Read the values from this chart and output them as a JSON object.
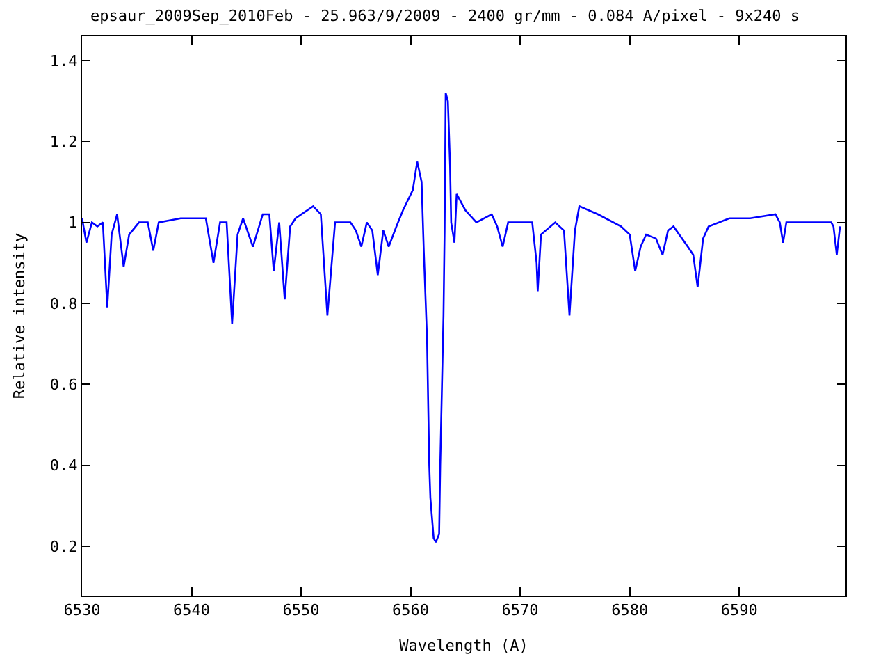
{
  "chart_data": {
    "type": "line",
    "title": "epsaur_2009Sep_2010Feb - 25.963/9/2009 - 2400 gr/mm - 0.084 A/pixel - 9x240 s",
    "xlabel": "Wavelength (A)",
    "ylabel": "Relative intensity",
    "x": [
      6530.0,
      6530.4,
      6530.9,
      6531.4,
      6531.9,
      6532.3,
      6532.7,
      6533.2,
      6533.8,
      6534.3,
      6535.2,
      6536.0,
      6536.5,
      6537.0,
      6539.0,
      6541.3,
      6542.0,
      6542.6,
      6543.2,
      6543.7,
      6544.2,
      6544.7,
      6545.6,
      6546.5,
      6547.1,
      6547.5,
      6548.0,
      6548.5,
      6549.0,
      6549.5,
      6551.1,
      6551.8,
      6552.4,
      6553.1,
      6553.6,
      6554.5,
      6555.0,
      6555.5,
      6556.0,
      6556.5,
      6557.0,
      6557.5,
      6558.0,
      6558.7,
      6559.3,
      6560.2,
      6560.6,
      6561.0,
      6561.2,
      6561.5,
      6561.7,
      6561.8,
      6562.1,
      6562.3,
      6562.6,
      6562.7,
      6563.0,
      6563.1,
      6563.2,
      6563.4,
      6563.6,
      6563.7,
      6564.0,
      6564.2,
      6565.0,
      6566.0,
      6567.4,
      6567.9,
      6568.4,
      6568.9,
      6570.1,
      6571.1,
      6571.5,
      6571.6,
      6571.9,
      6573.2,
      6574.0,
      6574.5,
      6575.0,
      6575.4,
      6577.1,
      6579.2,
      6580.0,
      6580.5,
      6581.0,
      6581.5,
      6582.4,
      6583.0,
      6583.5,
      6584.0,
      6585.3,
      6585.8,
      6586.2,
      6586.7,
      6587.2,
      6589.1,
      6591.0,
      6593.3,
      6593.7,
      6594.0,
      6594.3,
      6595.4,
      6597.3,
      6598.4,
      6598.6,
      6598.9,
      6599.2
    ],
    "values": [
      1.01,
      0.95,
      1.0,
      0.99,
      1.0,
      0.79,
      0.97,
      1.02,
      0.89,
      0.97,
      1.0,
      1.0,
      0.93,
      1.0,
      1.01,
      1.01,
      0.9,
      1.0,
      1.0,
      0.75,
      0.97,
      1.01,
      0.94,
      1.02,
      1.02,
      0.88,
      1.0,
      0.81,
      0.99,
      1.01,
      1.04,
      1.02,
      0.77,
      1.0,
      1.0,
      1.0,
      0.98,
      0.94,
      1.0,
      0.98,
      0.87,
      0.98,
      0.94,
      0.99,
      1.03,
      1.08,
      1.15,
      1.1,
      0.93,
      0.71,
      0.4,
      0.32,
      0.22,
      0.21,
      0.23,
      0.4,
      0.77,
      0.98,
      1.32,
      1.3,
      1.14,
      1.0,
      0.95,
      1.07,
      1.03,
      1.0,
      1.02,
      0.99,
      0.94,
      1.0,
      1.0,
      1.0,
      0.9,
      0.83,
      0.97,
      1.0,
      0.98,
      0.77,
      0.98,
      1.04,
      1.02,
      0.99,
      0.97,
      0.88,
      0.94,
      0.97,
      0.96,
      0.92,
      0.98,
      0.99,
      0.94,
      0.92,
      0.84,
      0.96,
      0.99,
      1.01,
      1.01,
      1.02,
      1.0,
      0.95,
      1.0,
      1.0,
      1.0,
      1.0,
      0.99,
      0.92,
      0.99
    ],
    "color": "#0000ff",
    "xlim": [
      6530,
      6599.7
    ],
    "ylim": [
      0.078,
      1.46
    ],
    "xticks": [
      6530,
      6540,
      6550,
      6560,
      6570,
      6580,
      6590
    ],
    "yticks": [
      0.2,
      0.4,
      0.6,
      0.8,
      1,
      1.2,
      1.4
    ],
    "legend": false
  }
}
